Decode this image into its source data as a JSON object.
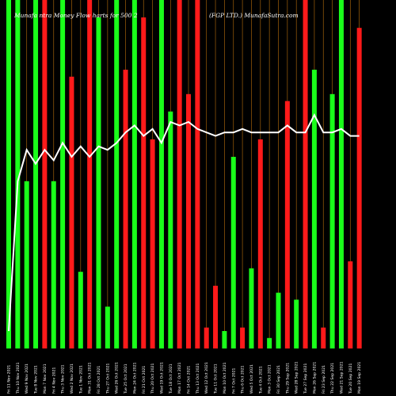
{
  "header": {
    "left": "Munafa   ntra   Money Flow   harts for   500   2",
    "right": "(FGP LTD.) MunafaSutra.com"
  },
  "chart_data": {
    "type": "bar",
    "title": "",
    "colors": {
      "up": "#1aff1a",
      "down": "#ff1a1a",
      "line": "#ffffff",
      "grid": "#a0600a",
      "background": "#000000"
    },
    "categories": [
      "Fri 11 Nov 2021",
      "Thu 10 Nov 2021",
      "Wed 9 Nov 2021",
      "Tue 8 Nov 2021",
      "Mon 7 Nov 2021",
      "Fri 4 Nov 2021",
      "Thu 3 Nov 2021",
      "Wed 2 Nov 2021",
      "Tue 1 Nov 2021",
      "Mon 31 Oct 2021",
      "Fri 28 Oct 2021",
      "Thu 27 Oct 2021",
      "Wed 26 Oct 2021",
      "Tue 25 Oct 2021",
      "Mon 24 Oct 2021",
      "Fri 21 Oct 2021",
      "Thu 20 Oct 2021",
      "Wed 19 Oct 2021",
      "Tue 18 Oct 2021",
      "Mon 17 Oct 2021",
      "Fri 14 Oct 2021",
      "Thu 13 Oct 2021",
      "Wed 12 Oct 2021",
      "Tue 11 Oct 2021",
      "Mon 10 Oct 2021",
      "Fri 7 Oct 2021",
      "Thu 6 Oct 2021",
      "Wed 5 Oct 2021",
      "Tue 4 Oct 2021",
      "Mon 3 Oct 2021",
      "Fri 30 Sep 2021",
      "Thu 29 Sep 2021",
      "Wed 28 Sep 2021",
      "Tue 27 Sep 2021",
      "Mon 26 Sep 2021",
      "Fri 23 Sep 2021",
      "Thu 22 Sep 2021",
      "Wed 21 Sep 2021",
      "Tue 20 Sep 2021",
      "Mon 19 Sep 2021"
    ],
    "directions": [
      "up",
      "up",
      "up",
      "up",
      "down",
      "up",
      "up",
      "down",
      "up",
      "down",
      "up",
      "up",
      "up",
      "down",
      "up",
      "down",
      "down",
      "up",
      "up",
      "down",
      "down",
      "down",
      "down",
      "down",
      "up",
      "up",
      "down",
      "up",
      "down",
      "up",
      "up",
      "down",
      "up",
      "down",
      "up",
      "down",
      "up",
      "up",
      "down",
      "down"
    ],
    "bars": [
      100,
      100,
      48,
      100,
      100,
      48,
      100,
      78,
      22,
      100,
      95,
      12,
      100,
      80,
      100,
      95,
      60,
      100,
      68,
      100,
      73,
      100,
      6,
      18,
      5,
      55,
      6,
      23,
      60,
      3,
      16,
      71,
      14,
      100,
      80,
      6,
      73,
      100,
      25,
      92
    ],
    "bars_extra": [
      0,
      0,
      0,
      0,
      0,
      0,
      0,
      0,
      0,
      0,
      0,
      0,
      0,
      0,
      0,
      0,
      0,
      0,
      0,
      0,
      0,
      0,
      0,
      0,
      0,
      0,
      0,
      0,
      0,
      0,
      0,
      0,
      0,
      0,
      0,
      0,
      0,
      0,
      0,
      0
    ],
    "money_flow_line": [
      5,
      48,
      57,
      53,
      57,
      54,
      59,
      55,
      58,
      55,
      58,
      57,
      59,
      62,
      64,
      61,
      63,
      59,
      65,
      64,
      65,
      63,
      62,
      61,
      62,
      62,
      63,
      62,
      62,
      62,
      62,
      64,
      62,
      62,
      67,
      62,
      62,
      63,
      61,
      61
    ],
    "ylim": [
      0,
      100
    ],
    "grid": true
  }
}
